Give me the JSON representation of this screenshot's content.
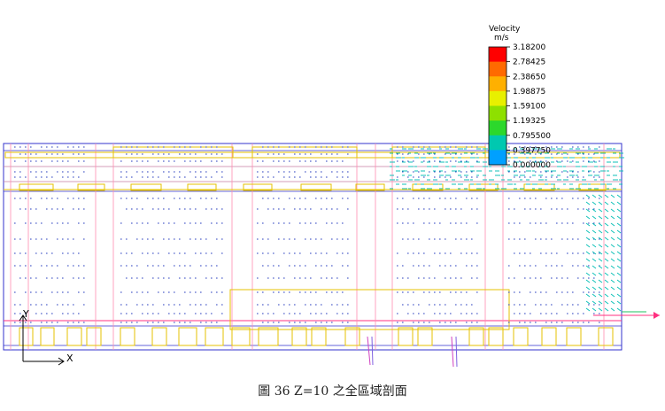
{
  "legend": {
    "title": "Velocity",
    "unit": "m/s",
    "ticks": [
      "3.18200",
      "2.78425",
      "2.38650",
      "1.98875",
      "1.59100",
      "1.19325",
      "0.795500",
      "0.397750",
      "0.000000"
    ],
    "colors": [
      "#ff0000",
      "#ff6a00",
      "#ffb000",
      "#e8f000",
      "#8ee000",
      "#2cd82c",
      "#00c8b0",
      "#00a0ff",
      "#0000ff"
    ]
  },
  "axes": {
    "y_label": "Y",
    "x_label": "X"
  },
  "caption": "圖 36 Z=10 之全區域剖面",
  "colors": {
    "frame": "#3333cc",
    "pink_lines": "#ff8cb0",
    "yellow_boxes": "#e6c200",
    "vectors_low": "#2a3fbf",
    "vectors_high": "#10c0b8"
  }
}
